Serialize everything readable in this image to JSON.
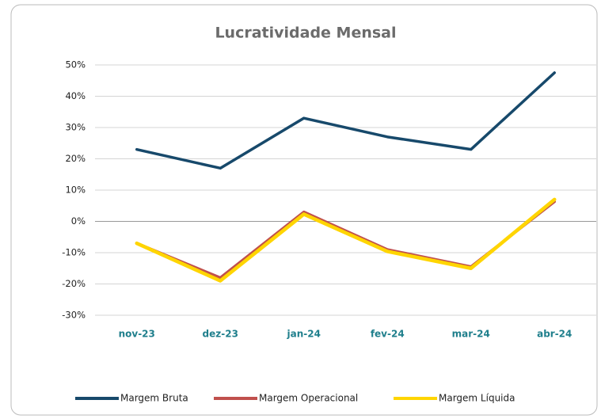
{
  "chart_data": {
    "type": "line",
    "title": "Lucratividade Mensal",
    "categories": [
      "nov-23",
      "dez-23",
      "jan-24",
      "fev-24",
      "mar-24",
      "abr-24"
    ],
    "series": [
      {
        "name": "Margem Bruta",
        "color": "#17496b",
        "values": [
          23,
          17,
          33,
          27,
          23,
          47.5
        ]
      },
      {
        "name": "Margem Operacional",
        "color": "#c0504d",
        "values": [
          -7,
          -18,
          3,
          -9,
          -14.5,
          6.3
        ]
      },
      {
        "name": "Margem Líquida",
        "color": "#ffd500",
        "values": [
          -7,
          -19,
          2.3,
          -9.6,
          -15,
          7
        ]
      }
    ],
    "ylim": [
      -30,
      50
    ],
    "yticks": [
      {
        "value": -30,
        "label": "-30%"
      },
      {
        "value": -20,
        "label": "-20%"
      },
      {
        "value": -10,
        "label": "-10%"
      },
      {
        "value": 0,
        "label": "0%"
      },
      {
        "value": 10,
        "label": "10%"
      },
      {
        "value": 20,
        "label": "20%"
      },
      {
        "value": 30,
        "label": "30%"
      },
      {
        "value": 40,
        "label": "40%"
      },
      {
        "value": 50,
        "label": "50%"
      }
    ],
    "grid": true,
    "legend": "bottom"
  }
}
